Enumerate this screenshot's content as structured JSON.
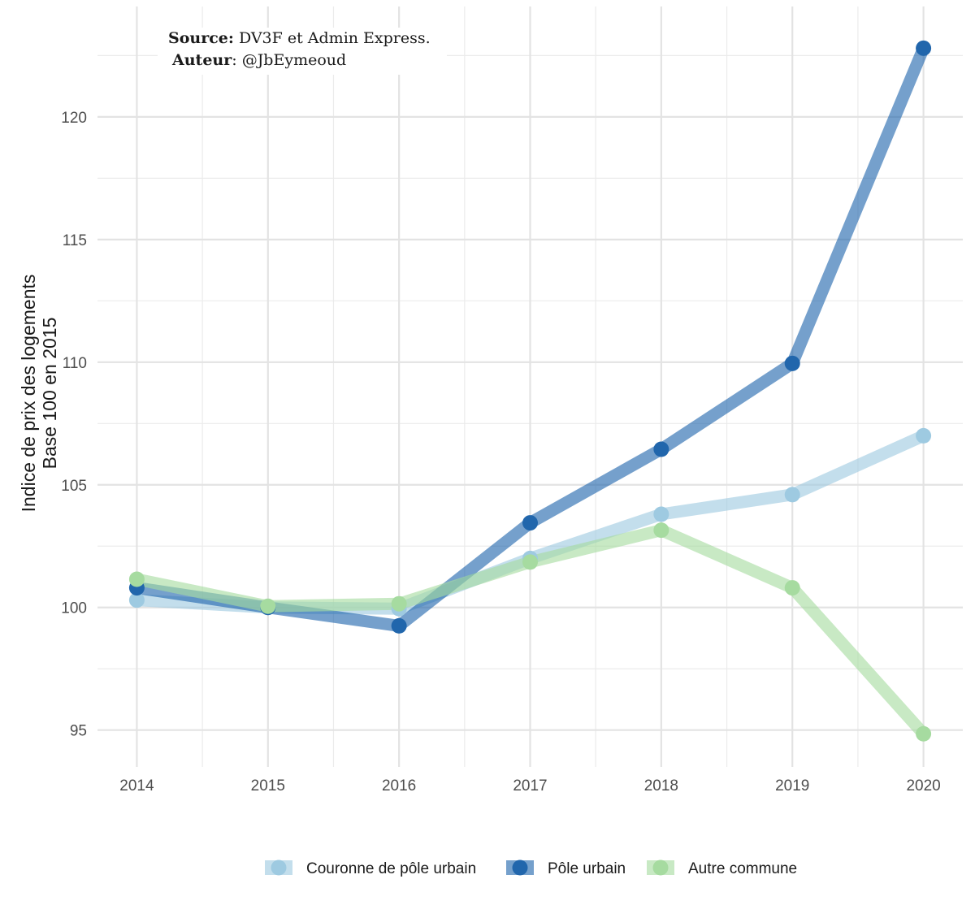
{
  "chart_data": {
    "type": "line",
    "x": [
      2014,
      2015,
      2016,
      2017,
      2018,
      2019,
      2020
    ],
    "series": [
      {
        "name": "Couronne de pôle urbain",
        "color": "#9ecae1",
        "values": [
          100.3,
          100.0,
          99.95,
          102.0,
          103.8,
          104.6,
          107.0
        ]
      },
      {
        "name": "Pôle urbain",
        "color": "#2166ac",
        "values": [
          100.8,
          100.0,
          99.25,
          103.45,
          106.45,
          109.95,
          122.8
        ]
      },
      {
        "name": "Autre commune",
        "color": "#a6dba0",
        "values": [
          101.15,
          100.05,
          100.15,
          101.85,
          103.15,
          100.8,
          94.85
        ]
      }
    ],
    "xlabel": "",
    "ylabel": [
      "Indice de prix des logements",
      "Base 100 en 2015"
    ],
    "ylim": [
      93.5,
      124.5
    ],
    "xlim": [
      2013.7,
      2020.3
    ],
    "yticks": [
      95,
      100,
      105,
      110,
      115,
      120
    ],
    "xticks": [
      2014,
      2015,
      2016,
      2017,
      2018,
      2019,
      2020
    ],
    "grid": true,
    "legend_position": "bottom",
    "caption": {
      "source_key": "Source:",
      "source_value": "DV3F et Admin Express.",
      "author_key": "Auteur",
      "author_value": ": @JbEymeoud"
    }
  }
}
